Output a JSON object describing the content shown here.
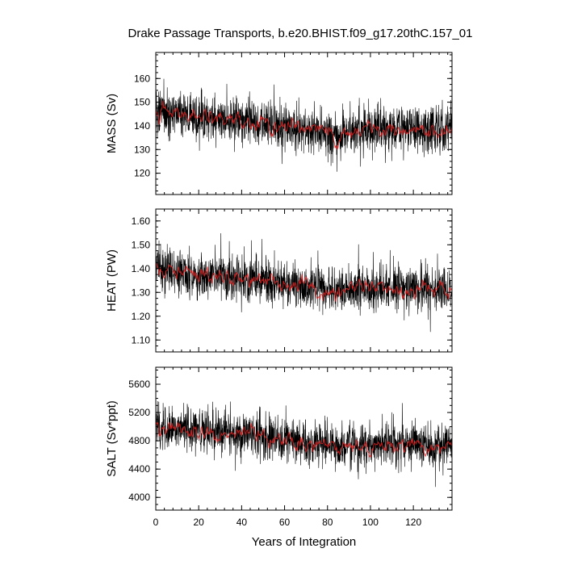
{
  "chart_data": [
    {
      "type": "line",
      "title": "Drake Passage Transports, b.e20.BHIST.f09_g17.20thC.157_01",
      "ylabel": "MASS (Sv)",
      "xlabel": "",
      "xlim": [
        0,
        138
      ],
      "ylim": [
        111,
        171
      ],
      "yticks": [
        "120",
        "130",
        "140",
        "150",
        "160"
      ],
      "series": [
        {
          "color": "#000000",
          "kind": "monthly",
          "trend": [
            [
              0,
              146
            ],
            [
              10,
              145
            ],
            [
              20,
              144
            ],
            [
              30,
              143
            ],
            [
              40,
              142
            ],
            [
              50,
              141
            ],
            [
              60,
              140
            ],
            [
              70,
              138
            ],
            [
              80,
              137
            ],
            [
              85,
              135
            ],
            [
              90,
              136
            ],
            [
              100,
              138
            ],
            [
              110,
              139
            ],
            [
              120,
              139
            ],
            [
              130,
              138
            ],
            [
              138,
              138
            ]
          ],
          "spread": 6.5,
          "spikes": 11
        },
        {
          "color": "#e02020",
          "kind": "smoothed",
          "trend": [
            [
              0,
              146
            ],
            [
              10,
              145
            ],
            [
              20,
              144
            ],
            [
              30,
              143
            ],
            [
              40,
              142
            ],
            [
              50,
              141
            ],
            [
              60,
              140
            ],
            [
              70,
              138
            ],
            [
              80,
              137
            ],
            [
              85,
              135
            ],
            [
              90,
              136
            ],
            [
              100,
              138
            ],
            [
              110,
              139
            ],
            [
              120,
              139
            ],
            [
              130,
              138
            ],
            [
              138,
              138
            ]
          ],
          "spread": 2.2,
          "spikes": 0
        }
      ]
    },
    {
      "type": "line",
      "title": "",
      "ylabel": "HEAT (PW)",
      "xlabel": "",
      "xlim": [
        0,
        138
      ],
      "ylim": [
        1.05,
        1.65
      ],
      "yticks": [
        "1.10",
        "1.20",
        "1.30",
        "1.40",
        "1.50",
        "1.60"
      ],
      "series": [
        {
          "color": "#000000",
          "kind": "monthly",
          "trend": [
            [
              0,
              1.4
            ],
            [
              20,
              1.37
            ],
            [
              40,
              1.36
            ],
            [
              60,
              1.34
            ],
            [
              80,
              1.31
            ],
            [
              100,
              1.32
            ],
            [
              120,
              1.31
            ],
            [
              138,
              1.32
            ]
          ],
          "spread": 0.065,
          "spikes": 0.11
        },
        {
          "color": "#e02020",
          "kind": "smoothed",
          "trend": [
            [
              0,
              1.4
            ],
            [
              20,
              1.37
            ],
            [
              40,
              1.36
            ],
            [
              60,
              1.34
            ],
            [
              80,
              1.31
            ],
            [
              100,
              1.32
            ],
            [
              120,
              1.31
            ],
            [
              138,
              1.32
            ]
          ],
          "spread": 0.022,
          "spikes": 0
        }
      ]
    },
    {
      "type": "line",
      "title": "",
      "ylabel": "SALT (Sv*ppt)",
      "xlabel": "Years of Integration",
      "xlim": [
        0,
        138
      ],
      "ylim": [
        3820,
        5840
      ],
      "yticks": [
        "4000",
        "4400",
        "4800",
        "5200",
        "5600"
      ],
      "xticks": [
        "0",
        "20",
        "40",
        "60",
        "80",
        "100",
        "120"
      ],
      "series": [
        {
          "color": "#000000",
          "kind": "monthly",
          "trend": [
            [
              0,
              5000
            ],
            [
              10,
              4980
            ],
            [
              20,
              4950
            ],
            [
              30,
              4920
            ],
            [
              40,
              4900
            ],
            [
              50,
              4870
            ],
            [
              60,
              4820
            ],
            [
              70,
              4770
            ],
            [
              80,
              4740
            ],
            [
              85,
              4680
            ],
            [
              90,
              4700
            ],
            [
              100,
              4740
            ],
            [
              110,
              4760
            ],
            [
              120,
              4750
            ],
            [
              130,
              4740
            ],
            [
              138,
              4740
            ]
          ],
          "spread": 210,
          "spikes": 380
        },
        {
          "color": "#e02020",
          "kind": "smoothed",
          "trend": [
            [
              0,
              5000
            ],
            [
              10,
              4980
            ],
            [
              20,
              4950
            ],
            [
              30,
              4920
            ],
            [
              40,
              4900
            ],
            [
              50,
              4870
            ],
            [
              60,
              4820
            ],
            [
              70,
              4770
            ],
            [
              80,
              4740
            ],
            [
              85,
              4680
            ],
            [
              90,
              4700
            ],
            [
              100,
              4740
            ],
            [
              110,
              4760
            ],
            [
              120,
              4750
            ],
            [
              130,
              4740
            ],
            [
              138,
              4740
            ]
          ],
          "spread": 70,
          "spikes": 0
        }
      ]
    }
  ]
}
